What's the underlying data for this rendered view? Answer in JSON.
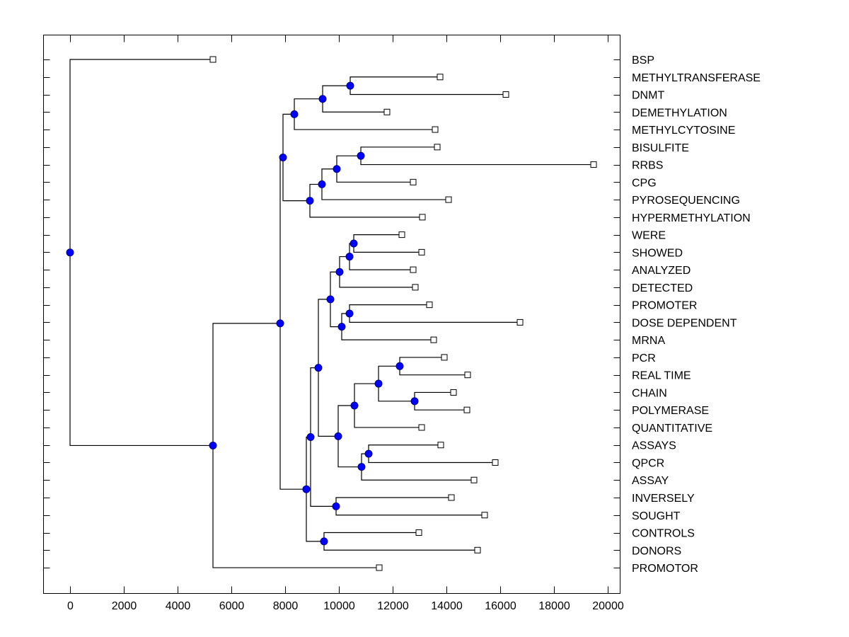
{
  "chart_data": {
    "type": "dendrogram",
    "title": "",
    "xlabel": "",
    "ylabel": "",
    "xlim": [
      -1000,
      20500
    ],
    "x_ticks": [
      0,
      2000,
      4000,
      6000,
      8000,
      10000,
      12000,
      14000,
      16000,
      18000,
      20000
    ],
    "x_tick_labels": [
      "0",
      "2000",
      "4000",
      "6000",
      "8000",
      "10000",
      "12000",
      "14000",
      "16000",
      "18000",
      "20000"
    ],
    "grid": false,
    "legend": "none",
    "leaf_labels": [
      "BSP",
      "METHYLTRANSFERASE",
      "DNMT",
      "DEMETHYLATION",
      "METHYLCYTOSINE",
      "BISULFITE",
      "RRBS",
      "CPG",
      "PYROSEQUENCING",
      "HYPERMETHYLATION",
      "WERE",
      "SHOWED",
      "ANALYZED",
      "DETECTED",
      "PROMOTER",
      "DOSE DEPENDENT",
      "MRNA",
      "PCR",
      "REAL TIME",
      "CHAIN",
      "POLYMERASE",
      "QUANTITATIVE",
      "ASSAYS",
      "QPCR",
      "ASSAY",
      "INVERSELY",
      "SOUGHT",
      "CONTROLS",
      "DONORS",
      "PROMOTOR"
    ],
    "leaf_values": [
      5316,
      13763,
      16211,
      11789,
      13579,
      13658,
      19474,
      12763,
      14079,
      13105,
      12342,
      13079,
      12763,
      12842,
      13368,
      16737,
      13526,
      13921,
      14789,
      14263,
      14763,
      13079,
      13789,
      15816,
      15026,
      14184,
      15421,
      12974,
      15158,
      11500
    ],
    "tree": {
      "v": 0,
      "children": [
        {
          "leaf": 0
        },
        {
          "v": 5316,
          "children": [
            {
              "v": 7816,
              "children": [
                {
                  "v": 7921,
                  "children": [
                    {
                      "v": 8342,
                      "children": [
                        {
                          "v": 9395,
                          "children": [
                            {
                              "v": 10421,
                              "children": [
                                {
                                  "leaf": 1
                                },
                                {
                                  "leaf": 2
                                }
                              ]
                            },
                            {
                              "leaf": 3
                            }
                          ]
                        },
                        {
                          "leaf": 4
                        }
                      ]
                    },
                    {
                      "v": 8921,
                      "children": [
                        {
                          "v": 9368,
                          "children": [
                            {
                              "v": 9921,
                              "children": [
                                {
                                  "v": 10816,
                                  "children": [
                                    {
                                      "leaf": 5
                                    },
                                    {
                                      "leaf": 6
                                    }
                                  ]
                                },
                                {
                                  "leaf": 7
                                }
                              ]
                            },
                            {
                              "leaf": 8
                            }
                          ]
                        },
                        {
                          "leaf": 9
                        }
                      ]
                    }
                  ]
                },
                {
                  "v": 8789,
                  "children": [
                    {
                      "v": 8947,
                      "children": [
                        {
                          "v": 9237,
                          "children": [
                            {
                              "v": 9684,
                              "children": [
                                {
                                  "v": 10026,
                                  "children": [
                                    {
                                      "v": 10395,
                                      "children": [
                                        {
                                          "v": 10553,
                                          "children": [
                                            {
                                              "leaf": 10
                                            },
                                            {
                                              "leaf": 11
                                            }
                                          ]
                                        },
                                        {
                                          "leaf": 12
                                        }
                                      ]
                                    },
                                    {
                                      "leaf": 13
                                    }
                                  ]
                                },
                                {
                                  "v": 10105,
                                  "children": [
                                    {
                                      "v": 10395,
                                      "children": [
                                        {
                                          "leaf": 14
                                        },
                                        {
                                          "leaf": 15
                                        }
                                      ]
                                    },
                                    {
                                      "leaf": 16
                                    }
                                  ]
                                }
                              ]
                            },
                            {
                              "v": 9974,
                              "children": [
                                {
                                  "v": 10579,
                                  "children": [
                                    {
                                      "v": 11474,
                                      "children": [
                                        {
                                          "v": 12263,
                                          "children": [
                                            {
                                              "leaf": 17
                                            },
                                            {
                                              "leaf": 18
                                            }
                                          ]
                                        },
                                        {
                                          "v": 12816,
                                          "children": [
                                            {
                                              "leaf": 19
                                            },
                                            {
                                              "leaf": 20
                                            }
                                          ]
                                        }
                                      ]
                                    },
                                    {
                                      "leaf": 21
                                    }
                                  ]
                                },
                                {
                                  "v": 10842,
                                  "children": [
                                    {
                                      "v": 11105,
                                      "children": [
                                        {
                                          "leaf": 22
                                        },
                                        {
                                          "leaf": 23
                                        }
                                      ]
                                    },
                                    {
                                      "leaf": 24
                                    }
                                  ]
                                }
                              ]
                            }
                          ]
                        },
                        {
                          "v": 9895,
                          "children": [
                            {
                              "leaf": 25
                            },
                            {
                              "leaf": 26
                            }
                          ]
                        }
                      ]
                    },
                    {
                      "v": 9447,
                      "children": [
                        {
                          "leaf": 27
                        },
                        {
                          "leaf": 28
                        }
                      ]
                    }
                  ]
                }
              ]
            },
            {
              "leaf": 29
            }
          ]
        }
      ]
    },
    "colors": {
      "node_fill": "#0000ff",
      "node_stroke": "#00008b",
      "leaf_fill": "#ffffff",
      "line": "#000000"
    }
  }
}
